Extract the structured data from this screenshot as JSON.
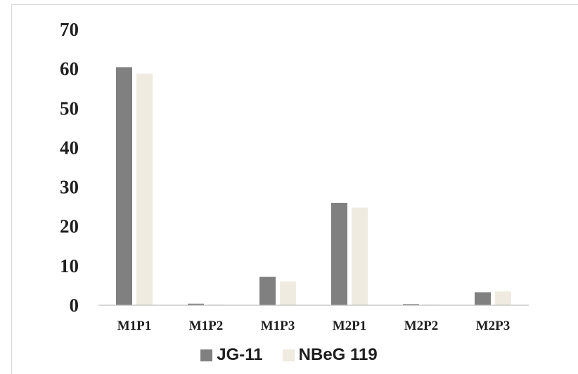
{
  "chart_data": {
    "type": "bar",
    "title": "",
    "xlabel": "",
    "ylabel": "",
    "categories": [
      "M1P1",
      "M1P2",
      "M1P3",
      "M2P1",
      "M2P2",
      "M2P3"
    ],
    "series": [
      {
        "name": "JG-11",
        "color": "#808080",
        "values": [
          60.4,
          0.4,
          7.2,
          26.0,
          0.3,
          3.3
        ]
      },
      {
        "name": "NBeG 119",
        "color": "#efebe0",
        "values": [
          58.8,
          0.2,
          6.0,
          24.8,
          0.2,
          3.5
        ]
      }
    ],
    "yticks": [
      "0",
      "10",
      "20",
      "30",
      "40",
      "50",
      "60",
      "70"
    ],
    "ylim": [
      0,
      70
    ],
    "grid": false,
    "legend_position": "bottom"
  }
}
